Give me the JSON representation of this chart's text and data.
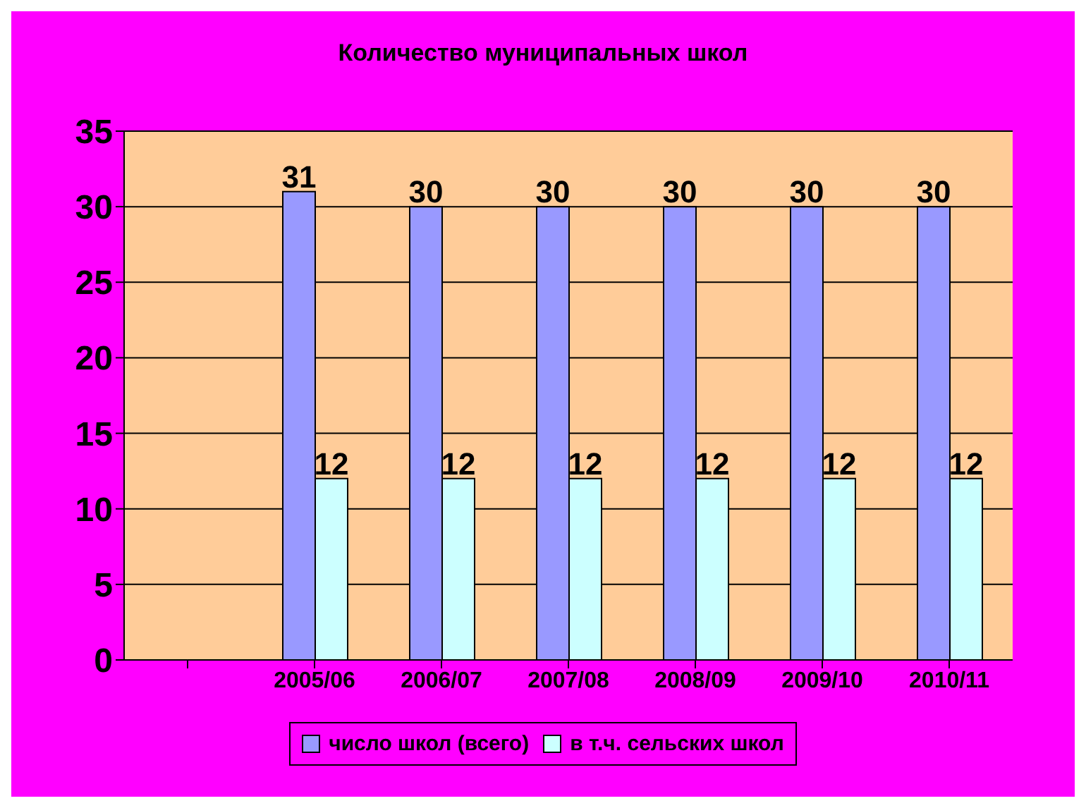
{
  "chart_data": {
    "type": "bar",
    "title": "Количество  муниципальных школ",
    "categories": [
      null,
      "2005/06",
      "2006/07",
      "2007/08",
      "2008/09",
      "2009/10",
      "2010/11"
    ],
    "series": [
      {
        "name": "число школ (всего)",
        "color": "#9999ff",
        "values": [
          null,
          31,
          30,
          30,
          30,
          30,
          30
        ]
      },
      {
        "name": "в т.ч. сельских школ",
        "color": "#ccffff",
        "values": [
          null,
          12,
          12,
          12,
          12,
          12,
          12
        ]
      }
    ],
    "ylim": [
      0,
      35
    ],
    "yticks": [
      0,
      5,
      10,
      15,
      20,
      25,
      30,
      35
    ],
    "grid": "y",
    "legend": "bottom",
    "data_labels": true
  }
}
